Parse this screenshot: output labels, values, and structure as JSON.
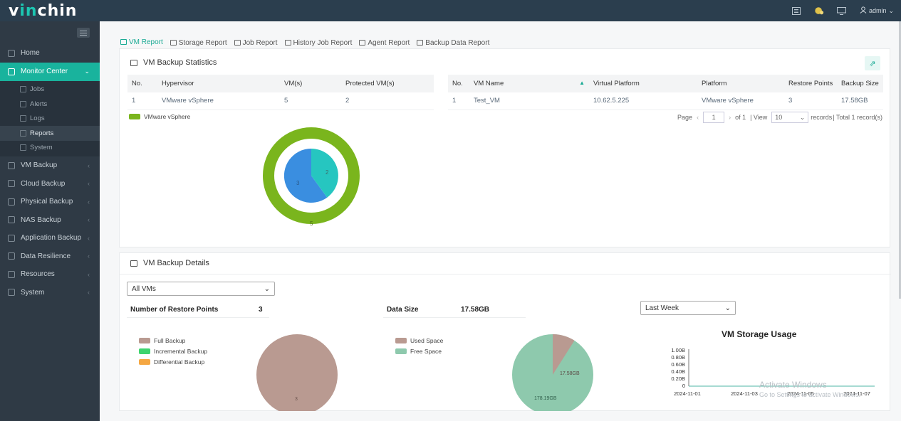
{
  "app": {
    "brand_pre": "v",
    "brand_in": "in",
    "brand_post": "chin",
    "user": "admin"
  },
  "sidebar": {
    "items": [
      {
        "label": "Home",
        "icon": "home-icon"
      },
      {
        "label": "Monitor Center",
        "icon": "monitor-icon",
        "active": true
      },
      {
        "label": "VM Backup",
        "icon": "vm-icon"
      },
      {
        "label": "Cloud Backup",
        "icon": "cloud-icon"
      },
      {
        "label": "Physical Backup",
        "icon": "server-icon"
      },
      {
        "label": "NAS Backup",
        "icon": "nas-icon"
      },
      {
        "label": "Application Backup",
        "icon": "application-icon"
      },
      {
        "label": "Data Resilience",
        "icon": "resilience-icon"
      },
      {
        "label": "Resources",
        "icon": "resources-icon"
      },
      {
        "label": "System",
        "icon": "system-icon"
      }
    ],
    "sub_items": [
      {
        "label": "Jobs",
        "icon": "jobs-icon"
      },
      {
        "label": "Alerts",
        "icon": "bell-icon"
      },
      {
        "label": "Logs",
        "icon": "logs-icon"
      },
      {
        "label": "Reports",
        "icon": "reports-icon",
        "selected": true
      },
      {
        "label": "System",
        "icon": "system-monitor-icon"
      }
    ]
  },
  "tabs": [
    {
      "label": "VM Report",
      "active": true
    },
    {
      "label": "Storage Report"
    },
    {
      "label": "Job Report"
    },
    {
      "label": "History Job Report"
    },
    {
      "label": "Agent Report"
    },
    {
      "label": "Backup Data Report"
    }
  ],
  "stats_panel": {
    "title": "VM Backup Statistics",
    "hypervisor_table": {
      "headers": [
        "No.",
        "Hypervisor",
        "VM(s)",
        "Protected VM(s)"
      ],
      "rows": [
        [
          "1",
          "VMware vSphere",
          "5",
          "2"
        ]
      ]
    },
    "vm_table": {
      "headers": [
        "No.",
        "VM Name",
        "Virtual Platform",
        "Platform",
        "Restore Points",
        "Backup Size"
      ],
      "rows": [
        [
          "1",
          "Test_VM",
          "10.62.5.225",
          "VMware vSphere",
          "3",
          "17.58GB"
        ]
      ]
    },
    "legend": "VMware vSphere",
    "donut": {
      "outer_total": "5",
      "protected": "2",
      "unprotected": "3"
    },
    "pager": {
      "page_label": "Page",
      "page": "1",
      "of": "of 1",
      "view": "| View",
      "per_page": "10",
      "records": "records",
      "total": "| Total 1 record(s)"
    }
  },
  "details_panel": {
    "title": "VM Backup Details",
    "vm_select": "All VMs",
    "restore_points_label": "Number of Restore Points",
    "restore_points_value": "3",
    "data_size_label": "Data Size",
    "data_size_value": "17.58GB",
    "range_select": "Last Week",
    "backup_legend": [
      "Full Backup",
      "Incremental Backup",
      "Differential Backup"
    ],
    "backup_pie_label": "3",
    "space_legend": [
      "Used Space",
      "Free Space"
    ],
    "space_pie": {
      "used": "17.58GB",
      "free": "178.19GB",
      "used_value": 17.58,
      "free_value": 178.19
    },
    "storage_chart": {
      "title": "VM Storage Usage",
      "y_ticks": [
        "1.00B",
        "0.80B",
        "0.60B",
        "0.40B",
        "0.20B",
        "0"
      ],
      "x_ticks": [
        "2024-11-01",
        "2024-11-03",
        "2024-11-05",
        "2024-11-07"
      ]
    }
  },
  "watermark": {
    "line1": "Activate Windows",
    "line2": "Go to Settings to activate Windows."
  },
  "colors": {
    "accent": "#19b39d",
    "vmware_green": "#7ab51d",
    "protected": "#26c6c0",
    "unprotected": "#3a8ee0",
    "full_backup": "#b99a91",
    "incremental": "#3fd46e",
    "differential": "#f5a742",
    "used_space": "#b99a91",
    "free_space": "#8ec9ad"
  }
}
